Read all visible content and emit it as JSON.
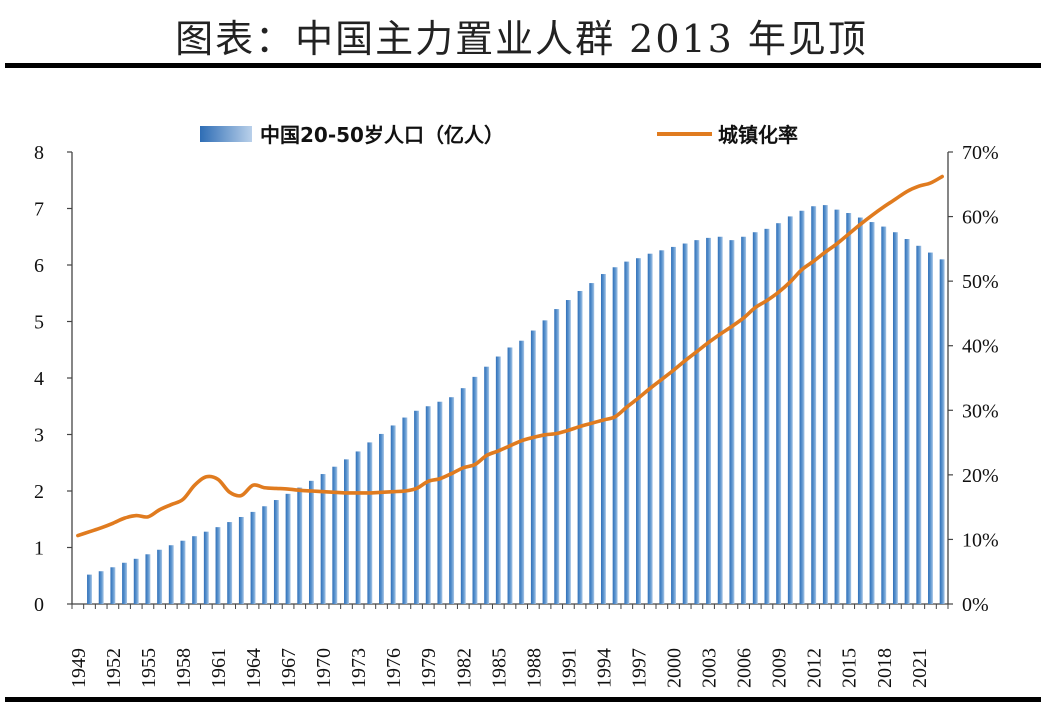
{
  "title": "图表：中国主力置业人群 2013 年见顶",
  "chart_data": {
    "type": "bar+line",
    "title": "图表：中国主力置业人群 2013 年见顶",
    "years": [
      1949,
      1950,
      1951,
      1952,
      1953,
      1954,
      1955,
      1956,
      1957,
      1958,
      1959,
      1960,
      1961,
      1962,
      1963,
      1964,
      1965,
      1966,
      1967,
      1968,
      1969,
      1970,
      1971,
      1972,
      1973,
      1974,
      1975,
      1976,
      1977,
      1978,
      1979,
      1980,
      1981,
      1982,
      1983,
      1984,
      1985,
      1986,
      1987,
      1988,
      1989,
      1990,
      1991,
      1992,
      1993,
      1994,
      1995,
      1996,
      1997,
      1998,
      1999,
      2000,
      2001,
      2002,
      2003,
      2004,
      2005,
      2006,
      2007,
      2008,
      2009,
      2010,
      2011,
      2012,
      2013,
      2014,
      2015,
      2016,
      2017,
      2018,
      2019,
      2020,
      2021,
      2022,
      2023
    ],
    "x_tick_labels": [
      "1949",
      "1952",
      "1955",
      "1958",
      "1961",
      "1964",
      "1967",
      "1970",
      "1973",
      "1976",
      "1979",
      "1982",
      "1985",
      "1988",
      "1991",
      "1994",
      "1997",
      "2000",
      "2003",
      "2006",
      "2009",
      "2012",
      "2015",
      "2018",
      "2021"
    ],
    "series": [
      {
        "name": "中国20-50岁人口（亿人）",
        "type": "bar",
        "axis": "left",
        "color": "#4a86c5",
        "values": [
          null,
          0.52,
          0.58,
          0.65,
          0.73,
          0.8,
          0.88,
          0.96,
          1.04,
          1.12,
          1.2,
          1.28,
          1.36,
          1.45,
          1.54,
          1.63,
          1.73,
          1.84,
          1.95,
          2.06,
          2.18,
          2.3,
          2.43,
          2.56,
          2.7,
          2.86,
          3.01,
          3.16,
          3.3,
          3.42,
          3.5,
          3.58,
          3.66,
          3.82,
          4.02,
          4.2,
          4.38,
          4.54,
          4.66,
          4.84,
          5.02,
          5.22,
          5.38,
          5.54,
          5.68,
          5.84,
          5.96,
          6.06,
          6.12,
          6.2,
          6.26,
          6.32,
          6.38,
          6.44,
          6.48,
          6.5,
          6.44,
          6.5,
          6.58,
          6.64,
          6.74,
          6.86,
          6.96,
          7.04,
          7.06,
          6.98,
          6.92,
          6.84,
          6.76,
          6.68,
          6.58,
          6.46,
          6.34,
          6.22,
          6.1
        ]
      },
      {
        "name": "城镇化率",
        "type": "line",
        "axis": "right",
        "color": "#e07b1f",
        "values": [
          10.6,
          11.2,
          11.8,
          12.5,
          13.3,
          13.7,
          13.5,
          14.6,
          15.4,
          16.2,
          18.4,
          19.7,
          19.3,
          17.3,
          16.8,
          18.4,
          18.0,
          17.9,
          17.8,
          17.6,
          17.5,
          17.4,
          17.3,
          17.2,
          17.2,
          17.2,
          17.3,
          17.4,
          17.5,
          17.9,
          19.0,
          19.4,
          20.2,
          21.1,
          21.6,
          23.0,
          23.7,
          24.5,
          25.3,
          25.8,
          26.2,
          26.4,
          26.9,
          27.5,
          28.0,
          28.5,
          29.0,
          30.5,
          31.9,
          33.4,
          34.8,
          36.2,
          37.7,
          39.1,
          40.5,
          41.8,
          43.0,
          44.3,
          45.9,
          47.0,
          48.3,
          49.9,
          51.8,
          53.1,
          54.5,
          55.8,
          57.3,
          58.8,
          60.2,
          61.5,
          62.7,
          63.9,
          64.7,
          65.2,
          66.2
        ]
      }
    ],
    "y_left": {
      "min": 0,
      "max": 8,
      "ticks": [
        "0",
        "1",
        "2",
        "3",
        "4",
        "5",
        "6",
        "7",
        "8"
      ]
    },
    "y_right": {
      "min": 0,
      "max": 70,
      "ticks": [
        "0%",
        "10%",
        "20%",
        "30%",
        "40%",
        "50%",
        "60%",
        "70%"
      ]
    },
    "legend": {
      "position": "top-center",
      "bar_label": "中国20-50岁人口（亿人）",
      "line_label": "城镇化率"
    }
  }
}
